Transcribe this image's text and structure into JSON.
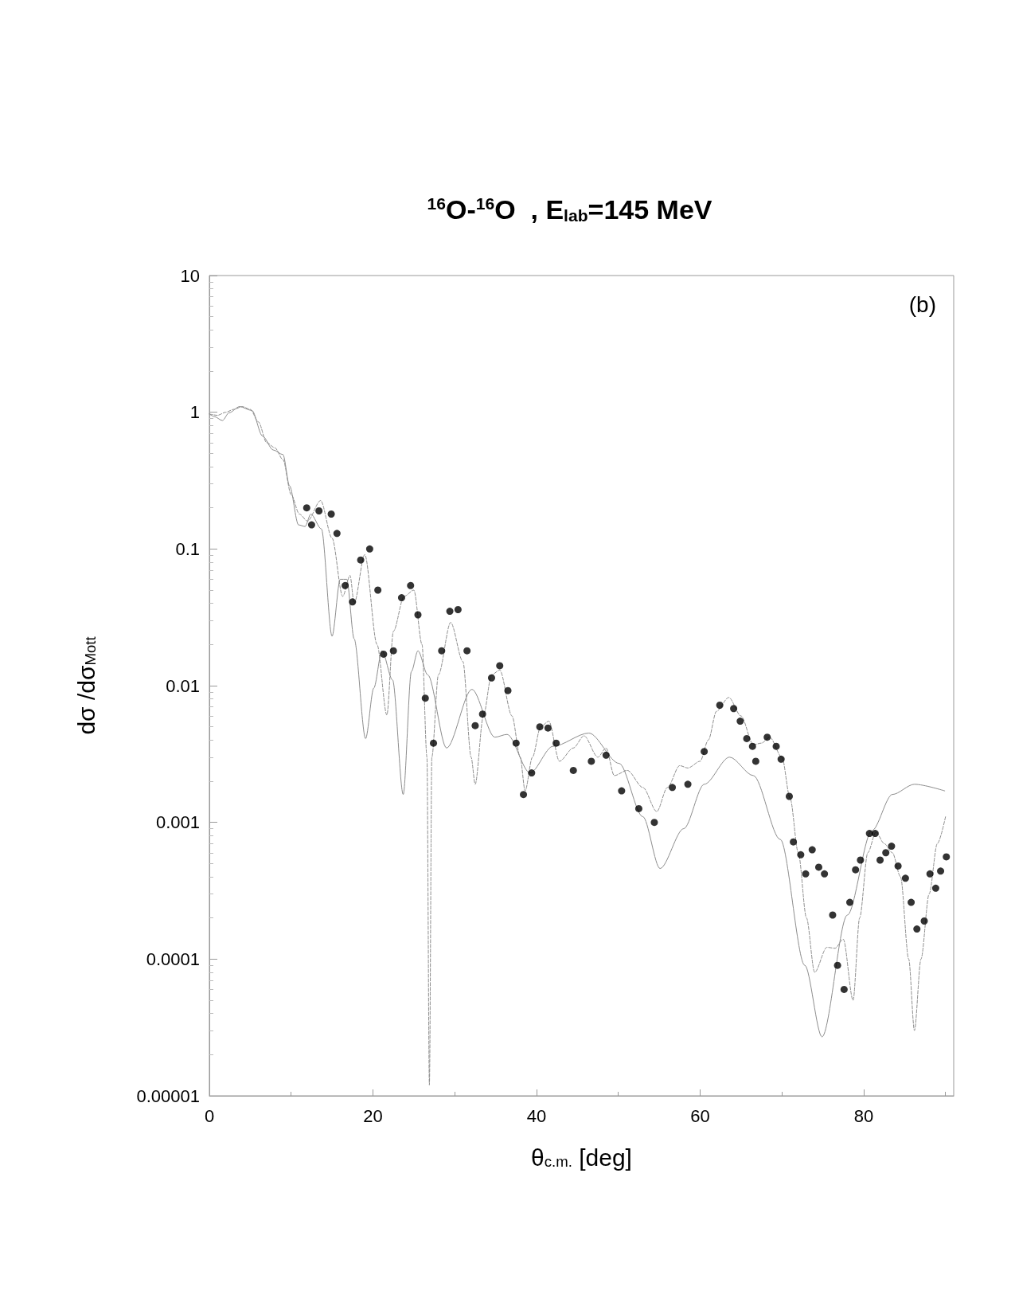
{
  "chart_data": {
    "type": "scatter",
    "title": "$^{16}$O-$^{16}$O  , E$_{lab}$=145 MeV",
    "xlabel": "θ$_{c.m.}$ [deg]",
    "ylabel": "dσ /dσ$_{Mott}$",
    "annotations": [
      "(b)"
    ],
    "log": "y",
    "grid": false,
    "xlim": [
      0,
      91
    ],
    "xticks": [
      0,
      20,
      40,
      60,
      80
    ],
    "ylim": [
      1e-05,
      10
    ],
    "yticks": [
      {
        "value": 1e-05,
        "label": "0.00001"
      },
      0.0001,
      0.001,
      0.01,
      0.1,
      1,
      10
    ],
    "series": [
      {
        "type": "line",
        "color": "#8c8c8c",
        "line_style": "solid",
        "marker": "none",
        "x": [
          0,
          0.6,
          1.6,
          2.4,
          3.7,
          5.2,
          6.5,
          7.8,
          9,
          9.8,
          10.9,
          11.7,
          12.4,
          13.7,
          15,
          16,
          16.8,
          17.7,
          19.1,
          20.1,
          21.1,
          22.4,
          23.7,
          24.7,
          25.5,
          26.7,
          29,
          32.1,
          34.9,
          36.4,
          39.2,
          42,
          46.4,
          50.1,
          53,
          55.1,
          58,
          60.5,
          63.6,
          66.5,
          69.8,
          72.8,
          74.9,
          78,
          81,
          83.5,
          86.2,
          89.9
        ],
        "values": [
          0.97,
          0.93,
          0.87,
          0.99,
          1.1,
          1.03,
          0.67,
          0.53,
          0.49,
          0.29,
          0.15,
          0.146,
          0.18,
          0.14,
          0.023,
          0.06,
          0.06,
          0.022,
          0.0041,
          0.0096,
          0.018,
          0.011,
          0.0016,
          0.0127,
          0.018,
          0.012,
          0.0035,
          0.0094,
          0.0042,
          0.0044,
          0.0023,
          0.0036,
          0.0045,
          0.0027,
          0.0011,
          0.00046,
          0.0009,
          0.0019,
          0.003,
          0.0022,
          0.00075,
          9e-05,
          2.7e-05,
          0.00021,
          0.00087,
          0.0016,
          0.0019,
          0.0017
        ]
      },
      {
        "type": "line",
        "color": "#8c8c8c",
        "line_style": "dashed",
        "marker": "none",
        "x": [
          0,
          1,
          2,
          3,
          4,
          5,
          6,
          7,
          8,
          9,
          10,
          11,
          12,
          13.6,
          15,
          16.3,
          17.2,
          17.7,
          19,
          20.5,
          21.7,
          22.5,
          23.8,
          25,
          26,
          26.6,
          26.9,
          27.2,
          28,
          29.5,
          31,
          32,
          32.5,
          33.5,
          34.5,
          35.5,
          37,
          38,
          38.6,
          39.5,
          40.5,
          41.5,
          42.8,
          44.5,
          45.8,
          47.5,
          48.5,
          49.5,
          51.1,
          53,
          54.7,
          56,
          57.5,
          58.5,
          60,
          61,
          62,
          63.5,
          65,
          66.5,
          67.5,
          68.5,
          70,
          71,
          72,
          73,
          74,
          75.5,
          76.5,
          77.5,
          78.7,
          79.5,
          80.5,
          81.5,
          82.5,
          83.5,
          84.5,
          85.5,
          86.2,
          87,
          88,
          89,
          90
        ],
        "values": [
          0.97,
          0.95,
          1.0,
          1.05,
          1.1,
          1.05,
          0.85,
          0.6,
          0.55,
          0.45,
          0.25,
          0.18,
          0.16,
          0.226,
          0.12,
          0.045,
          0.064,
          0.04,
          0.091,
          0.02,
          0.0061,
          0.025,
          0.045,
          0.05,
          0.02,
          0.003,
          1.2e-05,
          0.003,
          0.012,
          0.029,
          0.015,
          0.003,
          0.0019,
          0.006,
          0.012,
          0.013,
          0.006,
          0.003,
          0.0017,
          0.003,
          0.005,
          0.0055,
          0.0028,
          0.0035,
          0.0043,
          0.003,
          0.0035,
          0.0022,
          0.0024,
          0.0018,
          0.0012,
          0.0018,
          0.0026,
          0.0025,
          0.0028,
          0.004,
          0.0065,
          0.0082,
          0.006,
          0.0037,
          0.0038,
          0.0042,
          0.003,
          0.0015,
          0.0006,
          0.0002,
          8e-05,
          0.000122,
          0.00012,
          0.00014,
          5e-05,
          0.0002,
          0.0006,
          0.00085,
          0.0007,
          0.0006,
          0.0004,
          0.0001,
          3e-05,
          0.0001,
          0.0003,
          0.0007,
          0.0011
        ]
      },
      {
        "color": "#000000",
        "marker": "circle",
        "x": [
          11.9,
          12.5,
          13.4,
          14.9,
          15.6,
          16.6,
          17.5,
          18.5,
          19.6,
          20.6,
          21.3,
          22.5,
          23.5,
          24.6,
          25.5,
          26.4,
          27.4,
          28.4,
          29.4,
          30.4,
          31.5,
          32.5,
          33.4,
          34.5,
          35.5,
          36.5,
          37.5,
          38.4,
          39.4,
          40.4,
          41.4,
          42.4,
          44.5,
          46.7,
          48.5,
          50.4,
          52.5,
          54.4,
          56.6,
          58.5,
          60.5,
          62.4,
          64.1,
          64.9,
          65.7,
          66.4,
          66.8,
          68.2,
          69.3,
          69.9,
          70.9,
          71.4,
          72.3,
          72.9,
          73.7,
          74.5,
          75.2,
          76.2,
          76.8,
          77.6,
          78.3,
          79,
          79.6,
          80.7,
          81.4,
          82,
          82.7,
          83.4,
          84.2,
          85.1,
          85.8,
          86.5,
          87.4,
          88.1,
          88.8,
          89.4,
          90.1
        ],
        "values": [
          0.2,
          0.15,
          0.19,
          0.18,
          0.13,
          0.054,
          0.041,
          0.083,
          0.1,
          0.05,
          0.017,
          0.018,
          0.044,
          0.054,
          0.033,
          0.0081,
          0.0038,
          0.018,
          0.035,
          0.036,
          0.018,
          0.0051,
          0.0062,
          0.0114,
          0.014,
          0.0092,
          0.0038,
          0.0016,
          0.0023,
          0.005,
          0.0049,
          0.0038,
          0.0024,
          0.0028,
          0.0031,
          0.0017,
          0.00126,
          0.001,
          0.0018,
          0.0019,
          0.0033,
          0.0072,
          0.0068,
          0.0055,
          0.0041,
          0.0036,
          0.0028,
          0.0042,
          0.0036,
          0.0029,
          0.00155,
          0.00072,
          0.00058,
          0.00042,
          0.00063,
          0.00047,
          0.00042,
          0.00021,
          9e-05,
          6e-05,
          0.00026,
          0.00045,
          0.00053,
          0.00083,
          0.00083,
          0.00053,
          0.0006,
          0.00067,
          0.00048,
          0.00039,
          0.00026,
          0.000166,
          0.00019,
          0.00042,
          0.00033,
          0.00044,
          0.00056
        ]
      }
    ]
  }
}
